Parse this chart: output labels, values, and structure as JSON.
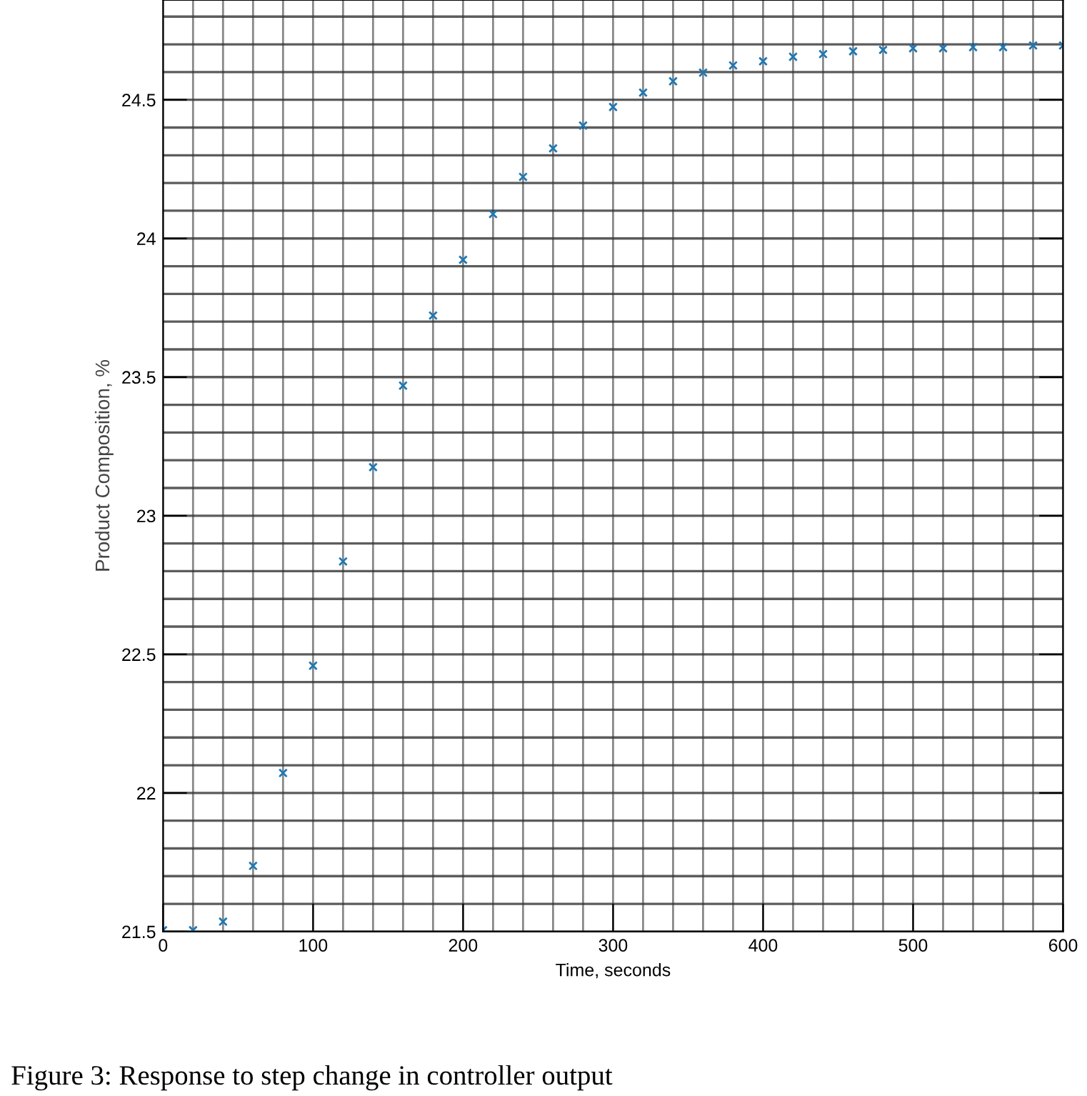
{
  "chart_data": {
    "type": "scatter",
    "xlabel": "Time, seconds",
    "ylabel": "Product Composition, %",
    "x": [
      0,
      20,
      40,
      60,
      80,
      100,
      120,
      140,
      160,
      180,
      200,
      220,
      240,
      260,
      280,
      300,
      320,
      340,
      360,
      380,
      400,
      420,
      440,
      460,
      480,
      500,
      520,
      540,
      560,
      580,
      600
    ],
    "series": [
      {
        "color": "#1f77b4",
        "values": [
          21.505,
          21.505,
          21.536,
          21.737,
          22.072,
          22.459,
          22.835,
          23.175,
          23.469,
          23.722,
          23.923,
          24.088,
          24.222,
          24.325,
          24.407,
          24.474,
          24.526,
          24.567,
          24.598,
          24.624,
          24.639,
          24.655,
          24.665,
          24.675,
          24.68,
          24.686,
          24.686,
          24.69,
          24.69,
          24.696,
          24.696
        ]
      }
    ],
    "marker": "cross",
    "grid": true,
    "xlim": [
      0,
      600
    ],
    "ylim": [
      21.5,
      24.86
    ],
    "xticks": [
      0,
      100,
      200,
      300,
      400,
      500,
      600
    ],
    "yticks": [
      21.5,
      22,
      22.5,
      23,
      23.5,
      24,
      24.5
    ],
    "annotations": [
      "Figure 3: Response to step change in controller output"
    ]
  }
}
